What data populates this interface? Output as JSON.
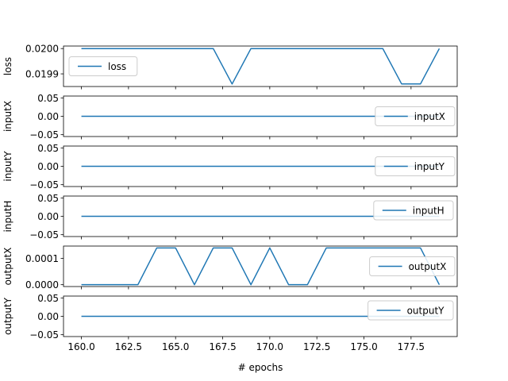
{
  "chart_data": [
    {
      "type": "line",
      "ylabel": "loss",
      "legend": "loss",
      "legend_loc": "center-left",
      "ylim": [
        0.01985,
        0.02001
      ],
      "yticks": [
        0.0199,
        0.02
      ],
      "ytick_labels": [
        "0.0199",
        "0.0200"
      ],
      "x": [
        160,
        161,
        162,
        163,
        164,
        165,
        166,
        167,
        168,
        169,
        170,
        171,
        172,
        173,
        174,
        175,
        176,
        177,
        178,
        179
      ],
      "series": [
        {
          "name": "loss",
          "values": [
            0.02,
            0.02,
            0.02,
            0.02,
            0.02,
            0.02,
            0.02,
            0.02,
            0.01986,
            0.02,
            0.02,
            0.02,
            0.02,
            0.02,
            0.02,
            0.02,
            0.02,
            0.01986,
            0.01986,
            0.02
          ]
        }
      ]
    },
    {
      "type": "line",
      "ylabel": "inputX",
      "legend": "inputX",
      "legend_loc": "right",
      "ylim": [
        -0.055,
        0.055
      ],
      "yticks": [
        -0.05,
        0,
        0.05
      ],
      "ytick_labels": [
        "−0.05",
        "0.00",
        "0.05"
      ],
      "x": [
        160,
        161,
        162,
        163,
        164,
        165,
        166,
        167,
        168,
        169,
        170,
        171,
        172,
        173,
        174,
        175,
        176,
        177,
        178,
        179
      ],
      "series": [
        {
          "name": "inputX",
          "values": [
            0,
            0,
            0,
            0,
            0,
            0,
            0,
            0,
            0,
            0,
            0,
            0,
            0,
            0,
            0,
            0,
            0,
            0,
            0,
            0
          ]
        }
      ]
    },
    {
      "type": "line",
      "ylabel": "inputY",
      "legend": "inputY",
      "legend_loc": "right",
      "ylim": [
        -0.055,
        0.055
      ],
      "yticks": [
        -0.05,
        0,
        0.05
      ],
      "ytick_labels": [
        "−0.05",
        "0.00",
        "0.05"
      ],
      "x": [
        160,
        161,
        162,
        163,
        164,
        165,
        166,
        167,
        168,
        169,
        170,
        171,
        172,
        173,
        174,
        175,
        176,
        177,
        178,
        179
      ],
      "series": [
        {
          "name": "inputY",
          "values": [
            0,
            0,
            0,
            0,
            0,
            0,
            0,
            0,
            0,
            0,
            0,
            0,
            0,
            0,
            0,
            0,
            0,
            0,
            0,
            0
          ]
        }
      ]
    },
    {
      "type": "line",
      "ylabel": "inputH",
      "legend": "inputH",
      "legend_loc": "upper-right",
      "ylim": [
        -0.055,
        0.055
      ],
      "yticks": [
        -0.05,
        0,
        0.05
      ],
      "ytick_labels": [
        "−0.05",
        "0.00",
        "0.05"
      ],
      "x": [
        160,
        161,
        162,
        163,
        164,
        165,
        166,
        167,
        168,
        169,
        170,
        171,
        172,
        173,
        174,
        175,
        176,
        177,
        178,
        179
      ],
      "series": [
        {
          "name": "inputH",
          "values": [
            0,
            0,
            0,
            0,
            0,
            0,
            0,
            0,
            0,
            0,
            0,
            0,
            0,
            0,
            0,
            0,
            0,
            0,
            0,
            0
          ]
        }
      ]
    },
    {
      "type": "line",
      "ylabel": "outputX",
      "legend": "outputX",
      "legend_loc": "right",
      "ylim": [
        -7e-06,
        0.000147
      ],
      "yticks": [
        0,
        0.0001
      ],
      "ytick_labels": [
        "0.0000",
        "0.0001"
      ],
      "x": [
        160,
        161,
        162,
        163,
        164,
        165,
        166,
        167,
        168,
        169,
        170,
        171,
        172,
        173,
        174,
        175,
        176,
        177,
        178,
        179
      ],
      "series": [
        {
          "name": "outputX",
          "values": [
            0,
            0,
            0,
            0,
            0.00014,
            0.00014,
            0,
            0.00014,
            0.00014,
            0,
            0.00014,
            0,
            0,
            0.00014,
            0.00014,
            0.00014,
            0.00014,
            0.00014,
            0.00014,
            0
          ]
        }
      ]
    },
    {
      "type": "line",
      "ylabel": "outputY",
      "legend": "outputY",
      "legend_loc": "upper-right",
      "ylim": [
        -0.055,
        0.055
      ],
      "yticks": [
        -0.05,
        0,
        0.05
      ],
      "ytick_labels": [
        "−0.05",
        "0.00",
        "0.05"
      ],
      "x": [
        160,
        161,
        162,
        163,
        164,
        165,
        166,
        167,
        168,
        169,
        170,
        171,
        172,
        173,
        174,
        175,
        176,
        177,
        178,
        179
      ],
      "series": [
        {
          "name": "outputY",
          "values": [
            0,
            0,
            0,
            0,
            0,
            0,
            0,
            0,
            0,
            0,
            0,
            0,
            0,
            0,
            0,
            0,
            0,
            0,
            0,
            0
          ]
        }
      ]
    }
  ],
  "x_axis": {
    "label": "# epochs",
    "xlim": [
      159.05,
      179.95
    ],
    "ticks": [
      160,
      162.5,
      165,
      167.5,
      170,
      172.5,
      175,
      177.5
    ],
    "tick_labels": [
      "160.0",
      "162.5",
      "165.0",
      "167.5",
      "170.0",
      "172.5",
      "175.0",
      "177.5"
    ]
  },
  "colors": {
    "line": "#1f77b4",
    "axes": "#000000",
    "legend_border": "#cccccc"
  },
  "grid": false
}
